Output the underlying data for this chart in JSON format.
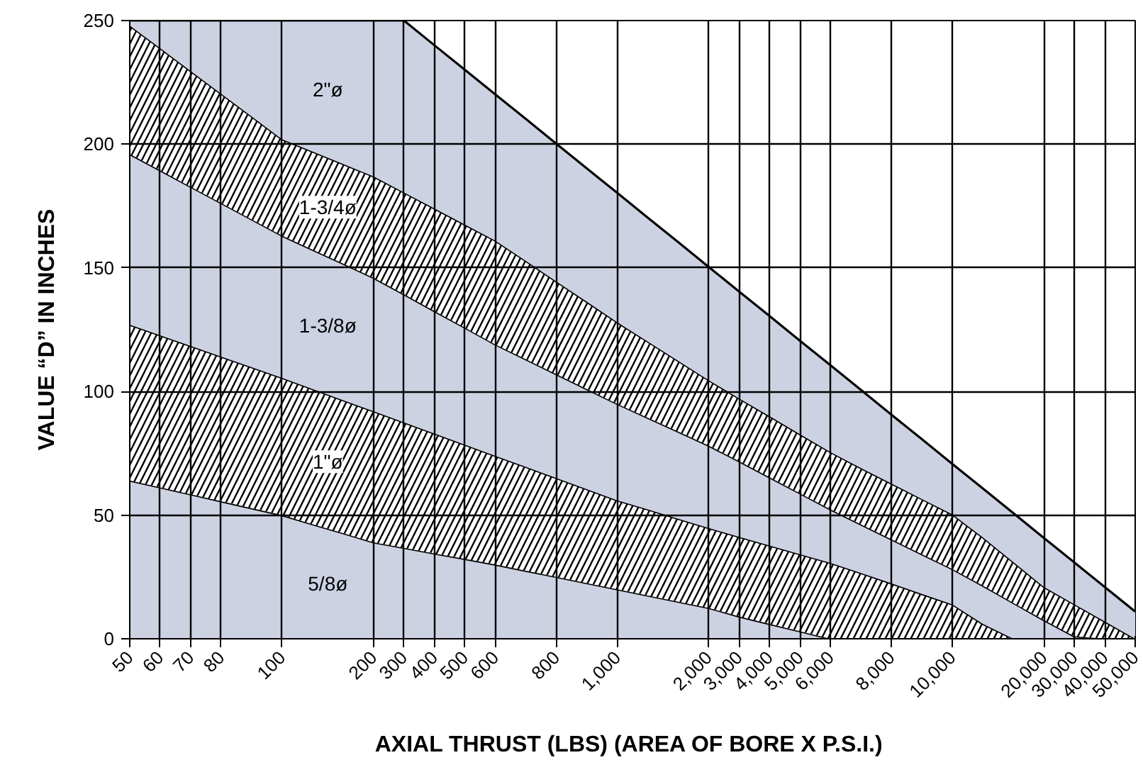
{
  "chart_data": {
    "type": "area",
    "stacked": true,
    "xlabel": "AXIAL THRUST (LBS)  (AREA OF BORE X P.S.I.)",
    "ylabel": "VALUE “D” IN INCHES",
    "categories": [
      "50",
      "60",
      "70",
      "80",
      null,
      "100",
      null,
      null,
      "200",
      "300",
      "400",
      "500",
      "600",
      null,
      "800",
      null,
      "1,000",
      null,
      null,
      "2,000",
      "3,000",
      "4,000",
      "5,000",
      "6,000",
      null,
      "8,000",
      null,
      "10,000",
      null,
      null,
      "20,000",
      "30,000",
      "40,000",
      "50,000"
    ],
    "series": [
      {
        "name": "5/8ø",
        "color": "#cdd2e3",
        "values": [
          64,
          61.2,
          58.4,
          55.6,
          52.8,
          50,
          46.3,
          42.7,
          39,
          36.8,
          34.5,
          32.3,
          30,
          27.5,
          25,
          22.5,
          20,
          17.5,
          15,
          12.5,
          9,
          6,
          3,
          0,
          0,
          0,
          0,
          0,
          0,
          0,
          0,
          0,
          0,
          0
        ]
      },
      {
        "name": "1\"ø",
        "color": "#ffffff",
        "values": [
          63,
          61.5,
          60,
          58.5,
          57,
          55.5,
          54.7,
          53.8,
          53,
          50.7,
          48.5,
          46.2,
          44,
          42,
          40,
          38,
          36,
          34.8,
          33.5,
          32.3,
          32.2,
          31.7,
          31.2,
          30.7,
          26.6,
          22.4,
          18.1,
          13.9,
          6,
          0,
          0,
          0,
          0,
          0
        ]
      },
      {
        "name": "1-3/8ø",
        "color": "#cdd2e3",
        "values": [
          69,
          66.7,
          64.4,
          62.1,
          59.8,
          57.5,
          56.3,
          55.2,
          54,
          51.8,
          49.5,
          47.3,
          45,
          43.5,
          42,
          40.5,
          39,
          37.1,
          35.3,
          33.3,
          30.6,
          27.6,
          24.6,
          21.6,
          19.6,
          17.8,
          16.1,
          14.3,
          15.5,
          14.5,
          7.6,
          1,
          0,
          0
        ]
      },
      {
        "name": "1-3/4ø",
        "color": "#ffffff",
        "values": [
          52,
          49.4,
          46.8,
          44.2,
          41.6,
          39,
          39.7,
          40.3,
          41,
          41.2,
          41.5,
          41.7,
          42,
          39.8,
          37.5,
          35.3,
          33,
          30.8,
          28.6,
          26.5,
          25.4,
          24.7,
          23.9,
          23.2,
          22.8,
          22.6,
          22.3,
          22.1,
          19.5,
          16.5,
          13.4,
          13,
          7,
          0
        ]
      },
      {
        "name": "2\"ø",
        "color": "#cdd2e3",
        "values": [
          2,
          11.2,
          20.4,
          29.6,
          38.8,
          48,
          53,
          58,
          63,
          69.5,
          66,
          62.6,
          59.1,
          57.4,
          55.7,
          53.9,
          52.3,
          50.1,
          48,
          45.8,
          43.2,
          40.5,
          37.8,
          35.1,
          31.6,
          27.8,
          24.2,
          20.4,
          19.8,
          19.8,
          19.8,
          16.9,
          13.9,
          11
        ]
      }
    ],
    "ylim": [
      0,
      250
    ],
    "yticks": [
      0,
      50,
      100,
      150,
      200,
      250
    ],
    "grid": true
  }
}
